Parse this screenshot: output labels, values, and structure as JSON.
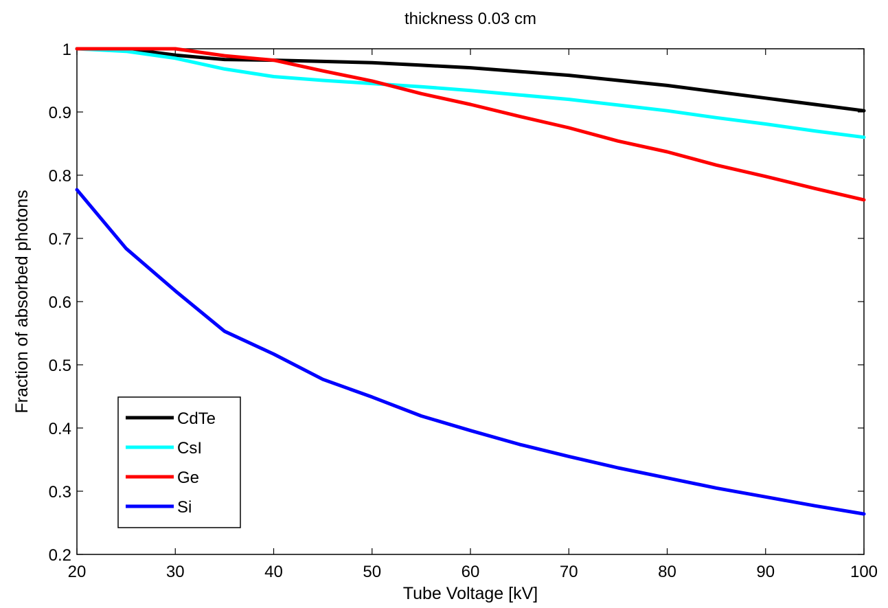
{
  "chart_data": {
    "type": "line",
    "title": "thickness 0.03 cm",
    "xlabel": "Tube Voltage [kV]",
    "ylabel": "Fraction of absorbed photons",
    "xlim": [
      20,
      100
    ],
    "ylim": [
      0.2,
      1.0
    ],
    "xticks": [
      20,
      30,
      40,
      50,
      60,
      70,
      80,
      90,
      100
    ],
    "xtick_labels": [
      "20",
      "30",
      "40",
      "50",
      "60",
      "70",
      "80",
      "90",
      "100"
    ],
    "yticks": [
      0.2,
      0.3,
      0.4,
      0.5,
      0.6,
      0.7,
      0.8,
      0.9,
      1.0
    ],
    "ytick_labels": [
      "0.2",
      "0.3",
      "0.4",
      "0.5",
      "0.6",
      "0.7",
      "0.8",
      "0.9",
      "1"
    ],
    "grid": false,
    "legend_position": "lower-left",
    "x": [
      20,
      25,
      30,
      35,
      40,
      45,
      50,
      55,
      60,
      65,
      70,
      75,
      80,
      85,
      90,
      95,
      100
    ],
    "series": [
      {
        "name": "CdTe",
        "color": "#000000",
        "values": [
          1.0,
          1.0,
          0.99,
          0.983,
          0.982,
          0.98,
          0.978,
          0.974,
          0.97,
          0.964,
          0.958,
          0.95,
          0.942,
          0.932,
          0.922,
          0.912,
          0.902
        ]
      },
      {
        "name": "CsI",
        "color": "#00ffff",
        "values": [
          1.0,
          0.996,
          0.985,
          0.968,
          0.956,
          0.95,
          0.945,
          0.94,
          0.934,
          0.927,
          0.92,
          0.911,
          0.902,
          0.891,
          0.881,
          0.87,
          0.86
        ]
      },
      {
        "name": "Ge",
        "color": "#ff0000",
        "values": [
          1.0,
          1.0,
          1.0,
          0.989,
          0.982,
          0.965,
          0.949,
          0.929,
          0.912,
          0.893,
          0.875,
          0.854,
          0.837,
          0.816,
          0.798,
          0.779,
          0.761
        ]
      },
      {
        "name": "Si",
        "color": "#0000ff",
        "values": [
          0.777,
          0.684,
          0.617,
          0.553,
          0.517,
          0.477,
          0.449,
          0.419,
          0.396,
          0.374,
          0.355,
          0.337,
          0.321,
          0.305,
          0.291,
          0.277,
          0.264
        ]
      }
    ]
  }
}
